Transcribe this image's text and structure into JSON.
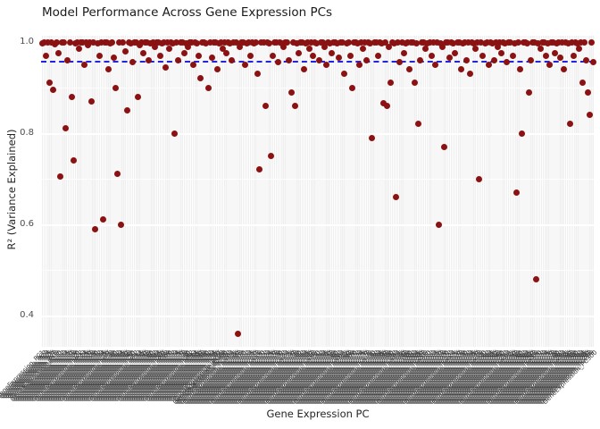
{
  "chart_data": {
    "type": "scatter",
    "title": "Model Performance Across Gene Expression PCs",
    "xlabel": "Gene Expression PC",
    "ylabel": "R² (Variance Explained)",
    "ylim": [
      0.333,
      1.014
    ],
    "yticks": [
      1.0,
      0.8,
      0.6,
      0.4
    ],
    "grid": "on",
    "legend": "none",
    "n_categories": 300,
    "category_label_format": "GeneExpression_PC{n}",
    "point_color": "#8b1212",
    "panel_color": "#efeff0",
    "gridline_color": "#ffffff",
    "reference_line": {
      "value": 0.956,
      "color": "#2424e0",
      "style": "dashed"
    },
    "values": [
      0.998,
      1.0,
      0.97,
      0.999,
      0.91,
      1.0,
      0.895,
      0.995,
      1.0,
      0.975,
      0.705,
      0.999,
      1.0,
      0.81,
      0.96,
      1.0,
      0.88,
      0.74,
      0.998,
      1.0,
      0.985,
      1.0,
      0.999,
      0.95,
      1.0,
      0.993,
      0.999,
      0.87,
      1.0,
      0.59,
      0.998,
      0.97,
      1.0,
      0.61,
      0.999,
      1.0,
      0.94,
      0.998,
      1.0,
      0.965,
      0.9,
      0.71,
      1.0,
      0.6,
      0.999,
      0.98,
      0.85,
      1.0,
      0.998,
      0.955,
      1.0,
      0.999,
      0.88,
      0.993,
      1.0,
      0.975,
      0.999,
      1.0,
      0.96,
      0.998,
      1.0,
      0.99,
      0.999,
      1.0,
      0.97,
      0.998,
      1.0,
      0.945,
      0.999,
      0.985,
      1.0,
      0.998,
      0.8,
      1.0,
      0.96,
      0.999,
      1.0,
      0.975,
      0.998,
      0.99,
      1.0,
      0.999,
      0.95,
      1.0,
      0.998,
      0.97,
      0.92,
      1.0,
      0.999,
      0.998,
      0.9,
      1.0,
      0.965,
      0.999,
      1.0,
      0.94,
      0.998,
      1.0,
      0.985,
      0.999,
      0.975,
      1.0,
      0.998,
      0.96,
      0.999,
      1.0,
      0.36,
      0.99,
      1.0,
      0.999,
      0.95,
      0.998,
      1.0,
      0.97,
      0.999,
      0.998,
      1.0,
      0.93,
      0.72,
      1.0,
      0.999,
      0.86,
      1.0,
      0.998,
      0.75,
      0.97,
      1.0,
      0.999,
      0.955,
      1.0,
      0.998,
      0.99,
      0.999,
      1.0,
      0.96,
      0.89,
      1.0,
      0.86,
      0.998,
      0.975,
      1.0,
      0.999,
      0.94,
      0.998,
      1.0,
      0.985,
      0.999,
      0.97,
      1.0,
      0.998,
      0.96,
      1.0,
      0.999,
      0.99,
      0.95,
      1.0,
      0.998,
      0.975,
      0.999,
      1.0,
      0.998,
      0.965,
      1.0,
      0.999,
      0.93,
      0.998,
      1.0,
      0.97,
      0.9,
      1.0,
      0.999,
      0.998,
      0.95,
      1.0,
      0.985,
      0.999,
      0.96,
      1.0,
      0.998,
      0.79,
      1.0,
      0.999,
      0.97,
      1.0,
      0.998,
      0.865,
      0.999,
      0.86,
      0.99,
      0.91,
      1.0,
      0.998,
      0.66,
      0.999,
      0.955,
      1.0,
      0.975,
      0.998,
      1.0,
      0.94,
      0.999,
      1.0,
      0.91,
      0.998,
      0.82,
      0.96,
      1.0,
      0.999,
      0.985,
      0.998,
      1.0,
      0.97,
      0.999,
      0.95,
      1.0,
      0.6,
      0.998,
      0.99,
      0.77,
      1.0,
      0.999,
      0.965,
      1.0,
      0.998,
      0.975,
      0.999,
      1.0,
      0.94,
      0.998,
      1.0,
      0.96,
      0.999,
      0.93,
      1.0,
      0.998,
      0.985,
      0.999,
      0.7,
      1.0,
      0.97,
      0.998,
      1.0,
      0.95,
      0.999,
      0.998,
      0.96,
      1.0,
      0.99,
      0.999,
      0.975,
      1.0,
      0.998,
      0.955,
      0.999,
      1.0,
      0.97,
      0.998,
      0.67,
      1.0,
      0.94,
      0.8,
      0.999,
      1.0,
      0.998,
      0.89,
      0.96,
      0.999,
      1.0,
      0.48,
      0.998,
      0.985,
      1.0,
      0.999,
      0.97,
      0.998,
      0.95,
      1.0,
      0.999,
      0.975,
      0.998,
      1.0,
      0.965,
      0.999,
      0.94,
      1.0,
      0.998,
      0.82,
      0.999,
      0.97,
      1.0,
      0.998,
      0.985,
      0.999,
      0.91,
      1.0,
      0.96,
      0.89,
      0.84,
      0.999,
      0.955
    ]
  }
}
